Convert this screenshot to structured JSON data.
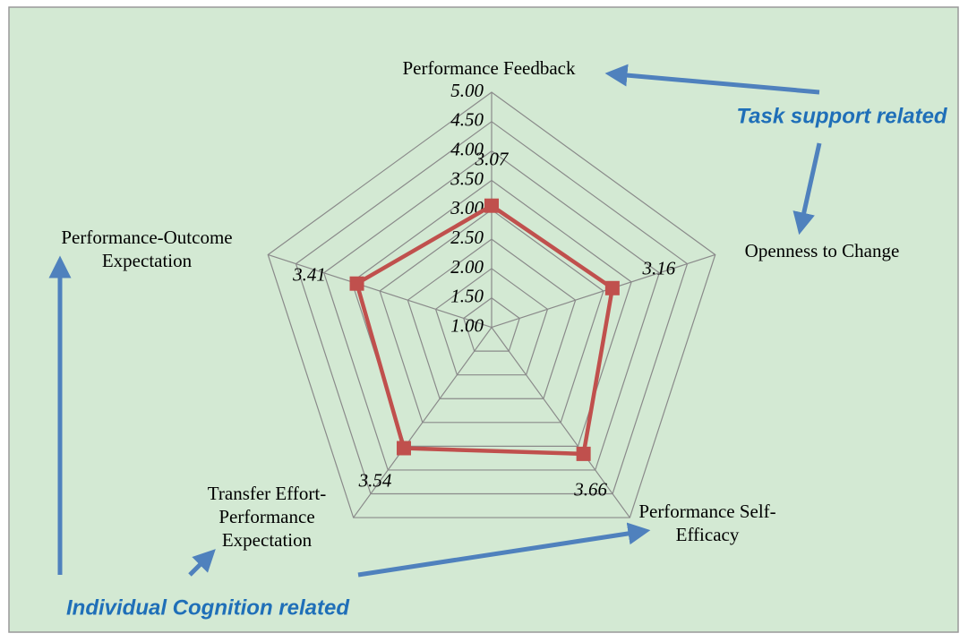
{
  "chart_data": {
    "type": "radar",
    "categories": [
      [
        "Performance Feedback"
      ],
      [
        "Openness to Change"
      ],
      [
        "Performance Self-",
        "Efficacy"
      ],
      [
        "Transfer Effort-",
        "Performance",
        "Expectation"
      ],
      [
        "Performance-Outcome",
        "Expectation"
      ]
    ],
    "series": [
      {
        "color": "#c0504d",
        "values": [
          3.07,
          3.16,
          3.66,
          3.54,
          3.41
        ]
      }
    ],
    "ylim": [
      1,
      5
    ],
    "yticks": [
      {
        "value": 1,
        "label": "1.00"
      },
      {
        "value": 1.5,
        "label": "1.50"
      },
      {
        "value": 2,
        "label": "2.00"
      },
      {
        "value": 2.5,
        "label": "2.50"
      },
      {
        "value": 3,
        "label": "3.00"
      },
      {
        "value": 3.5,
        "label": "3.50"
      },
      {
        "value": 4,
        "label": "4.00"
      },
      {
        "value": 4.5,
        "label": "4.50"
      },
      {
        "value": 5,
        "label": "5.00"
      }
    ],
    "grid": true,
    "annotations": [
      "Task support related",
      "Individual Cognition related"
    ]
  }
}
